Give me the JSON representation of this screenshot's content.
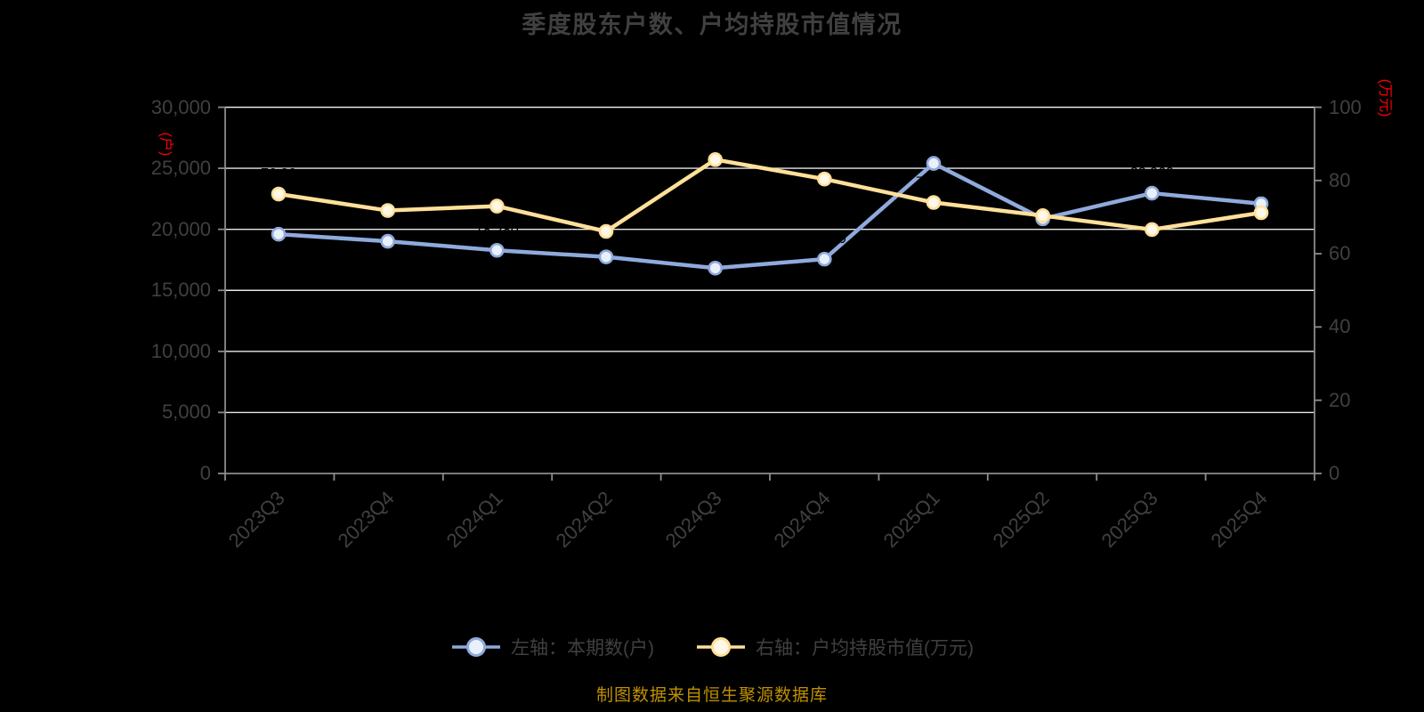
{
  "title": "季度股东户数、户均持股市值情况",
  "footer": "制图数据来自恒生聚源数据库",
  "colors": {
    "background": "#000000",
    "title_text": "#404040",
    "axis_text": "#404040",
    "axis_line": "#8C8C8C",
    "gridline": "#E8E8E8",
    "unit_text": "#FF0000",
    "footer_text": "#BF9000",
    "data_label": "#000000",
    "blue_line": "#8FAADC",
    "blue_marker_fill": "#EAF0F9",
    "yellow_line": "#FFE099",
    "yellow_marker_fill": "#FFF8E8"
  },
  "legend": {
    "items": [
      {
        "label": "左轴：本期数(户)",
        "series": "blue"
      },
      {
        "label": "右轴：户均持股市值(万元)",
        "series": "yellow"
      }
    ]
  },
  "chart_data": {
    "type": "line",
    "title": "季度股东户数、户均持股市值情况",
    "categories": [
      "2023Q3",
      "2023Q4",
      "2024Q1",
      "2024Q2",
      "2024Q3",
      "2024Q4",
      "2025Q1",
      "2025Q2",
      "2025Q3",
      "2025Q4"
    ],
    "series": [
      {
        "name": "左轴：本期数(户)",
        "axis": "left",
        "color_key": "blue",
        "label_format": "int",
        "values": [
          19600,
          19020,
          18280,
          17740,
          16820,
          17560,
          25400,
          20860,
          22960,
          22100
        ]
      },
      {
        "name": "右轴：户均持股市值(万元)",
        "axis": "right",
        "color_key": "yellow",
        "label_format": "dec2",
        "values": [
          76.3,
          71.8,
          73.0,
          66.1,
          85.7,
          80.4,
          74.0,
          70.4,
          66.6,
          71.2
        ]
      }
    ],
    "left_axis": {
      "unit": "(户)",
      "min": 0,
      "max": 30000,
      "tick_step": 5000,
      "tick_labels": [
        "0",
        "5,000",
        "10,000",
        "15,000",
        "20,000",
        "25,000",
        "30,000"
      ]
    },
    "right_axis": {
      "unit": "(万元)",
      "min": 0,
      "max": 100,
      "tick_step": 20,
      "tick_labels": [
        "0",
        "20",
        "40",
        "60",
        "80",
        "100"
      ]
    },
    "grid": true,
    "legend_position": "bottom",
    "x_tick_rotation": -45,
    "data_labels_visible": false
  }
}
